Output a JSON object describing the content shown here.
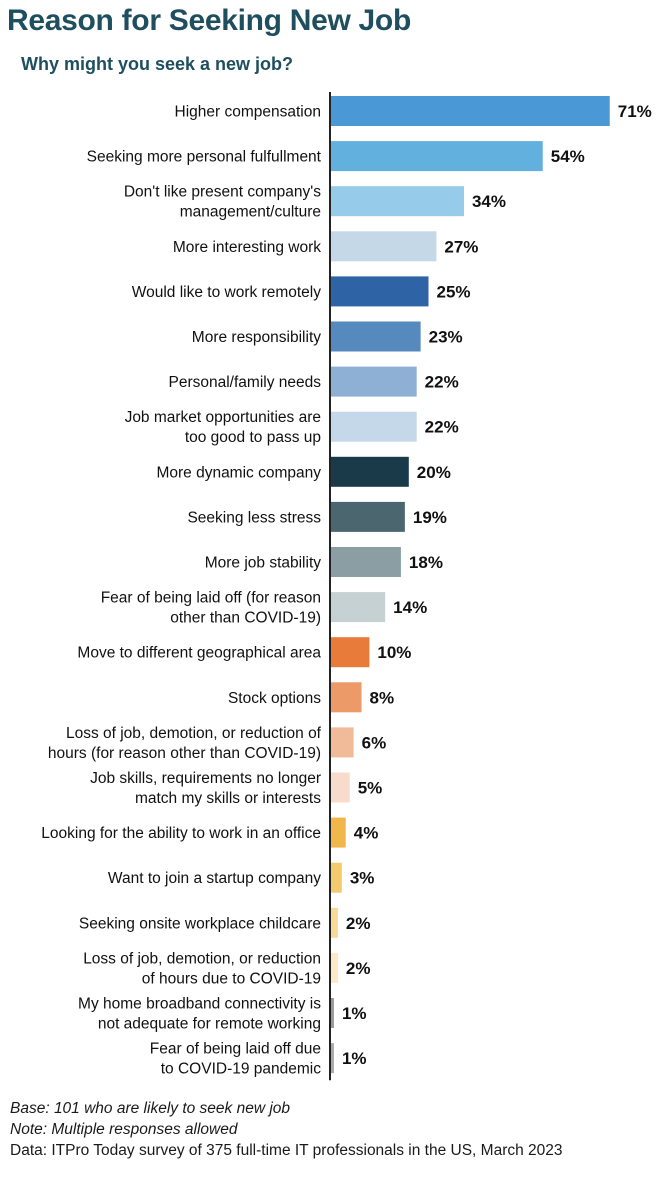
{
  "chart_data": {
    "type": "bar",
    "orientation": "horizontal",
    "title": "Reason for Seeking New Job",
    "subtitle": "Why might you seek a new job?",
    "value_suffix": "%",
    "categories": [
      "Higher compensation",
      "Seeking more personal fulfullment",
      "Don't like present company's|management/culture",
      "More interesting work",
      "Would like to work remotely",
      "More responsibility",
      "Personal/family needs",
      "Job market opportunities are|too good to pass up",
      "More dynamic company",
      "Seeking less stress",
      "More job stability",
      "Fear of being laid off (for reason|other than COVID-19)",
      "Move to different geographical area",
      "Stock options",
      "Loss of job, demotion, or reduction of|hours (for reason other than COVID-19)",
      "Job skills, requirements no longer|match my skills or interests",
      "Looking for the ability to work in an office",
      "Want to join a startup company",
      "Seeking onsite workplace childcare",
      "Loss of job, demotion, or reduction|of hours due to COVID-19",
      "My home broadband connectivity is|not adequate for remote working",
      "Fear of being laid off due|to COVID-19 pandemic"
    ],
    "values": [
      71,
      54,
      34,
      27,
      25,
      23,
      22,
      22,
      20,
      19,
      18,
      14,
      10,
      8,
      6,
      5,
      4,
      3,
      2,
      2,
      1,
      1
    ],
    "colors": [
      "#4a98d6",
      "#62b0dd",
      "#96cbea",
      "#c4d8e8",
      "#2e63a6",
      "#5689bd",
      "#8eb0d4",
      "#c5d8ea",
      "#1a3a4a",
      "#4c6670",
      "#8a9ea4",
      "#c6d1d4",
      "#e87a3a",
      "#ec9a68",
      "#f1bb9a",
      "#f8dccb",
      "#f0b84a",
      "#f4ca6e",
      "#f7da96",
      "#fbeac4",
      "#999999",
      "#aaaaaa"
    ]
  },
  "footer": {
    "base": "Base: 101 who are likely to seek new job",
    "note": "Note: Multiple responses allowed",
    "source": "Data: ITPro Today survey of 375 full-time IT professionals in the US, March 2023"
  }
}
